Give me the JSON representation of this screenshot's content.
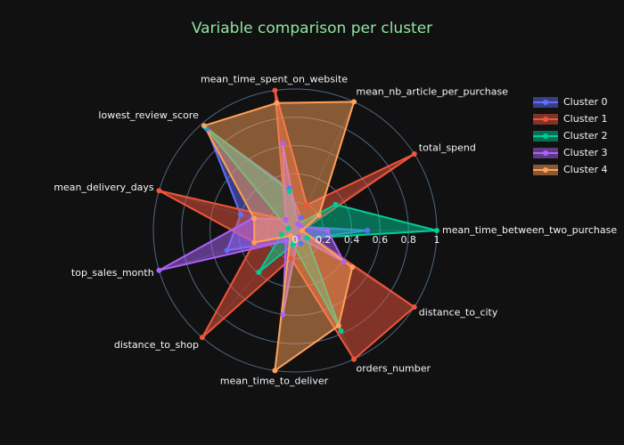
{
  "chart_data": {
    "type": "radar",
    "title": "Variable comparison per cluster",
    "categories": [
      "mean_time_between_two_purchase",
      "total_spend",
      "mean_nb_article_per_purchase",
      "mean_time_spent_on_website",
      "lowest_review_score",
      "mean_delivery_days",
      "top_sales_month",
      "distance_to_shop",
      "mean_time_to_deliver",
      "orders_number",
      "distance_to_city"
    ],
    "series": [
      {
        "name": "Cluster 0",
        "color": "#636efa",
        "values": [
          0.51,
          0.05,
          0.1,
          0.3,
          0.95,
          0.4,
          0.5,
          0.1,
          0.1,
          0.1,
          0.1
        ]
      },
      {
        "name": "Cluster 1",
        "color": "#ef553b",
        "values": [
          0.05,
          1.0,
          0.2,
          1.0,
          0.1,
          1.0,
          0.3,
          1.0,
          0.2,
          1.0,
          1.0
        ]
      },
      {
        "name": "Cluster 2",
        "color": "#00cc96",
        "values": [
          1.0,
          0.34,
          0.05,
          0.28,
          0.97,
          0.05,
          0.1,
          0.39,
          0.1,
          0.78,
          0.1
        ]
      },
      {
        "name": "Cluster 3",
        "color": "#ab63fa",
        "values": [
          0.23,
          0.05,
          0.05,
          0.62,
          0.1,
          0.31,
          1.0,
          0.1,
          0.6,
          0.05,
          0.41
        ]
      },
      {
        "name": "Cluster 4",
        "color": "#ffa15a",
        "values": [
          0.05,
          0.2,
          1.0,
          0.91,
          0.98,
          0.3,
          0.3,
          0.05,
          1.0,
          0.74,
          0.48
        ]
      }
    ],
    "rlim": [
      0,
      1
    ],
    "rticks": [
      0,
      0.2,
      0.4,
      0.6,
      0.8,
      1
    ],
    "fill": true
  }
}
